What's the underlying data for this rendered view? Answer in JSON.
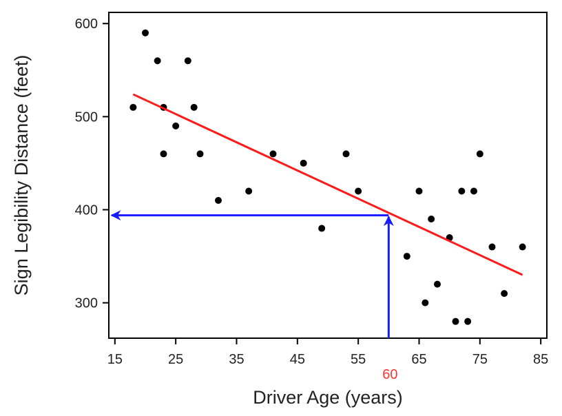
{
  "chart_data": {
    "type": "scatter",
    "title": "",
    "xlabel": "Driver Age (years)",
    "ylabel": "Sign Legibility Distance (feet)",
    "xlim": [
      14,
      86
    ],
    "ylim": [
      262,
      612
    ],
    "xticks": [
      15,
      25,
      35,
      45,
      55,
      65,
      75,
      85
    ],
    "yticks": [
      300,
      400,
      500,
      600
    ],
    "grid": false,
    "legend": "none",
    "points": [
      {
        "x": 18,
        "y": 510
      },
      {
        "x": 20,
        "y": 590
      },
      {
        "x": 22,
        "y": 560
      },
      {
        "x": 23,
        "y": 510
      },
      {
        "x": 23,
        "y": 460
      },
      {
        "x": 25,
        "y": 490
      },
      {
        "x": 27,
        "y": 560
      },
      {
        "x": 28,
        "y": 510
      },
      {
        "x": 29,
        "y": 460
      },
      {
        "x": 32,
        "y": 410
      },
      {
        "x": 37,
        "y": 420
      },
      {
        "x": 41,
        "y": 460
      },
      {
        "x": 46,
        "y": 450
      },
      {
        "x": 49,
        "y": 380
      },
      {
        "x": 53,
        "y": 460
      },
      {
        "x": 55,
        "y": 420
      },
      {
        "x": 63,
        "y": 350
      },
      {
        "x": 65,
        "y": 420
      },
      {
        "x": 66,
        "y": 300
      },
      {
        "x": 67,
        "y": 390
      },
      {
        "x": 68,
        "y": 320
      },
      {
        "x": 70,
        "y": 370
      },
      {
        "x": 71,
        "y": 280
      },
      {
        "x": 72,
        "y": 420
      },
      {
        "x": 73,
        "y": 280
      },
      {
        "x": 74,
        "y": 420
      },
      {
        "x": 75,
        "y": 460
      },
      {
        "x": 77,
        "y": 360
      },
      {
        "x": 79,
        "y": 310
      },
      {
        "x": 82,
        "y": 360
      }
    ],
    "regression_line": {
      "x": [
        18,
        82
      ],
      "y": [
        524,
        330
      ]
    },
    "annotation": {
      "x_value": 60,
      "label": "60",
      "predicted_y": 394
    },
    "colors": {
      "points": "#000000",
      "regression": "#ff1a1a",
      "arrows": "#1a1aff",
      "annotation_label": "#ff3333",
      "axes": "#000000"
    }
  }
}
